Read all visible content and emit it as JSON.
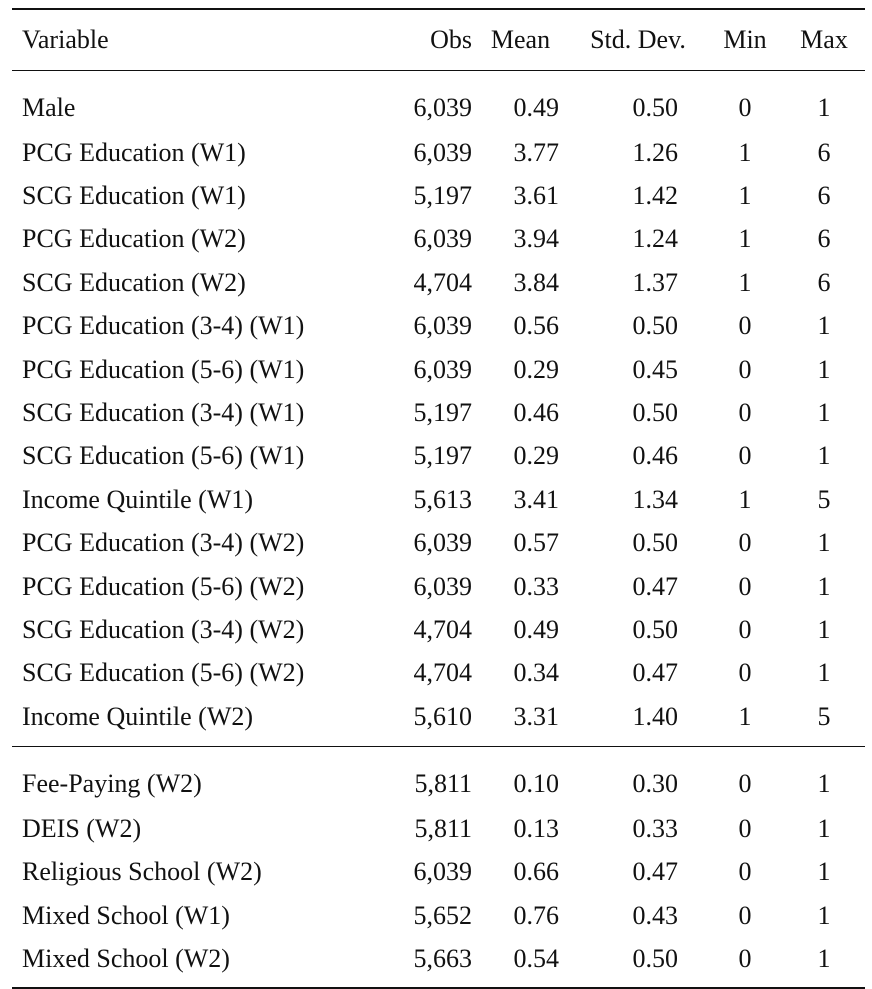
{
  "table": {
    "headers": [
      "Variable",
      "Obs",
      "Mean",
      "Std. Dev.",
      "Min",
      "Max"
    ],
    "group1": [
      {
        "variable": "Male",
        "obs": "6,039",
        "mean": "0.49",
        "sd": "0.50",
        "min": "0",
        "max": "1"
      },
      {
        "variable": "PCG Education (W1)",
        "obs": "6,039",
        "mean": "3.77",
        "sd": "1.26",
        "min": "1",
        "max": "6"
      },
      {
        "variable": "SCG Education (W1)",
        "obs": "5,197",
        "mean": "3.61",
        "sd": "1.42",
        "min": "1",
        "max": "6"
      },
      {
        "variable": "PCG Education (W2)",
        "obs": "6,039",
        "mean": "3.94",
        "sd": "1.24",
        "min": "1",
        "max": "6"
      },
      {
        "variable": "SCG Education (W2)",
        "obs": "4,704",
        "mean": "3.84",
        "sd": "1.37",
        "min": "1",
        "max": "6"
      },
      {
        "variable": "PCG Education (3-4) (W1)",
        "obs": "6,039",
        "mean": "0.56",
        "sd": "0.50",
        "min": "0",
        "max": "1"
      },
      {
        "variable": "PCG Education (5-6) (W1)",
        "obs": "6,039",
        "mean": "0.29",
        "sd": "0.45",
        "min": "0",
        "max": "1"
      },
      {
        "variable": "SCG Education (3-4) (W1)",
        "obs": "5,197",
        "mean": "0.46",
        "sd": "0.50",
        "min": "0",
        "max": "1"
      },
      {
        "variable": "SCG Education (5-6) (W1)",
        "obs": "5,197",
        "mean": "0.29",
        "sd": "0.46",
        "min": "0",
        "max": "1"
      },
      {
        "variable": "Income Quintile (W1)",
        "obs": "5,613",
        "mean": "3.41",
        "sd": "1.34",
        "min": "1",
        "max": "5"
      },
      {
        "variable": "PCG Education (3-4) (W2)",
        "obs": "6,039",
        "mean": "0.57",
        "sd": "0.50",
        "min": "0",
        "max": "1"
      },
      {
        "variable": "PCG Education (5-6) (W2)",
        "obs": "6,039",
        "mean": "0.33",
        "sd": "0.47",
        "min": "0",
        "max": "1"
      },
      {
        "variable": "SCG Education (3-4) (W2)",
        "obs": "4,704",
        "mean": "0.49",
        "sd": "0.50",
        "min": "0",
        "max": "1"
      },
      {
        "variable": "SCG Education (5-6) (W2)",
        "obs": "4,704",
        "mean": "0.34",
        "sd": "0.47",
        "min": "0",
        "max": "1"
      },
      {
        "variable": "Income Quintile (W2)",
        "obs": "5,610",
        "mean": "3.31",
        "sd": "1.40",
        "min": "1",
        "max": "5"
      }
    ],
    "group2": [
      {
        "variable": "Fee-Paying (W2)",
        "obs": "5,811",
        "mean": "0.10",
        "sd": "0.30",
        "min": "0",
        "max": "1"
      },
      {
        "variable": "DEIS (W2)",
        "obs": "5,811",
        "mean": "0.13",
        "sd": "0.33",
        "min": "0",
        "max": "1"
      },
      {
        "variable": "Religious School (W2)",
        "obs": "6,039",
        "mean": "0.66",
        "sd": "0.47",
        "min": "0",
        "max": "1"
      },
      {
        "variable": "Mixed School (W1)",
        "obs": "5,652",
        "mean": "0.76",
        "sd": "0.43",
        "min": "0",
        "max": "1"
      },
      {
        "variable": "Mixed School (W2)",
        "obs": "5,663",
        "mean": "0.54",
        "sd": "0.50",
        "min": "0",
        "max": "1"
      }
    ]
  }
}
